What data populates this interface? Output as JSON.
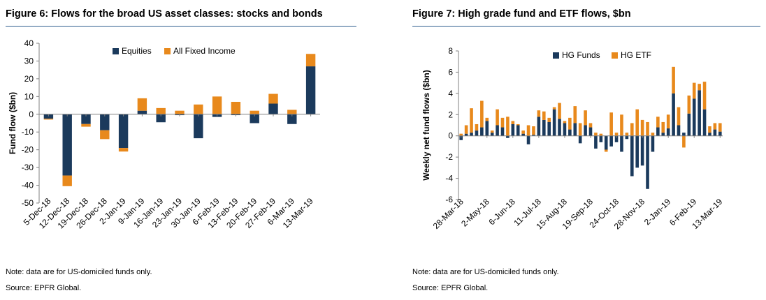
{
  "colors": {
    "series1": "#1b3a5c",
    "series2": "#e8891c",
    "rule": "#2f5f8f",
    "axis": "#808080"
  },
  "figure6": {
    "title": "Figure 6: Flows for the broad US asset classes: stocks and bonds",
    "note": "Note: data are for US-domiciled funds only.",
    "source": "Source: EPFR Global."
  },
  "figure7": {
    "title": "Figure 7: High grade fund and ETF flows, $bn",
    "note": "Note: data are for US-domiciled funds only.",
    "source": "Source: EPFR Global."
  },
  "chart_data": [
    {
      "type": "bar",
      "stacked": true,
      "title": "Figure 6: Flows for the broad US asset classes: stocks and bonds",
      "xlabel": "",
      "ylabel": "Fund flow ($bn)",
      "ylim": [
        -50,
        40
      ],
      "yticks": [
        -50,
        -40,
        -30,
        -20,
        -10,
        0,
        10,
        20,
        30,
        40
      ],
      "legend_position": "top-right",
      "categories": [
        "5-Dec-18",
        "12-Dec-18",
        "19-Dec-18",
        "26-Dec-18",
        "2-Jan-19",
        "9-Jan-19",
        "16-Jan-19",
        "23-Jan-19",
        "30-Jan-19",
        "6-Feb-19",
        "13-Feb-19",
        "20-Feb-19",
        "27-Feb-19",
        "6-Mar-19",
        "13-Mar-19"
      ],
      "series": [
        {
          "name": "Equities",
          "values": [
            -2.5,
            -34.5,
            -5.5,
            -9,
            -19,
            2,
            -4.5,
            -0.5,
            -13.5,
            -1.5,
            -0.5,
            -5,
            6,
            -5.5,
            27
          ]
        },
        {
          "name": "All Fixed Income",
          "values": [
            -0.5,
            -6,
            -1.5,
            -5,
            -2,
            7,
            3.5,
            2,
            5.5,
            10,
            7,
            2,
            5.5,
            2.5,
            7
          ]
        }
      ]
    },
    {
      "type": "bar",
      "stacked": true,
      "title": "Figure 7: High grade fund and ETF flows, $bn",
      "xlabel": "",
      "ylabel": "Weekly net fund flows ($bn)",
      "ylim": [
        -6,
        8
      ],
      "yticks": [
        -6,
        -4,
        -2,
        0,
        2,
        4,
        6,
        8
      ],
      "legend_position": "top-left",
      "x_tick_labels": [
        "28-Mar-18",
        "2-May-18",
        "6-Jun-18",
        "11-Jul-18",
        "15-Aug-18",
        "19-Sep-18",
        "24-Oct-18",
        "28-Nov-18",
        "2-Jan-19",
        "6-Feb-19",
        "13-Mar-19"
      ],
      "x_tick_index": [
        0,
        5,
        10,
        15,
        20,
        25,
        30,
        35,
        40,
        45,
        50
      ],
      "series": [
        {
          "name": "HG Funds",
          "values": [
            -0.4,
            0.2,
            0.3,
            0.5,
            0.8,
            1.4,
            0.3,
            1.0,
            0.8,
            -0.2,
            1.1,
            1.0,
            0.2,
            -0.8,
            0.1,
            1.8,
            1.5,
            1.3,
            2.5,
            1.6,
            1.2,
            0.6,
            1.2,
            -0.7,
            1.0,
            0.8,
            -1.2,
            -0.6,
            -1.3,
            -1.0,
            -0.6,
            -1.5,
            -0.3,
            -3.8,
            -3.0,
            -2.8,
            -5.0,
            -1.5,
            0.8,
            0.3,
            0.7,
            4.0,
            1.0,
            0.3,
            2.1,
            3.5,
            4.3,
            2.5,
            0.3,
            0.6,
            0.4
          ]
        },
        {
          "name": "HG ETF",
          "values": [
            0.2,
            0.8,
            2.3,
            0.6,
            2.5,
            0.3,
            0.2,
            1.5,
            0.9,
            1.8,
            0.3,
            0.1,
            0.3,
            1.0,
            0.8,
            0.6,
            0.8,
            0.4,
            0.2,
            1.5,
            0.2,
            1.1,
            1.6,
            1.2,
            1.4,
            0.4,
            0.3,
            0.2,
            -0.2,
            2.2,
            0.3,
            2.0,
            0.3,
            1.2,
            2.5,
            1.5,
            1.3,
            0.3,
            1.0,
            1.0,
            1.3,
            2.5,
            1.7,
            -1.1,
            1.7,
            1.5,
            0.6,
            2.6,
            0.6,
            0.6,
            0.8
          ]
        }
      ]
    }
  ]
}
